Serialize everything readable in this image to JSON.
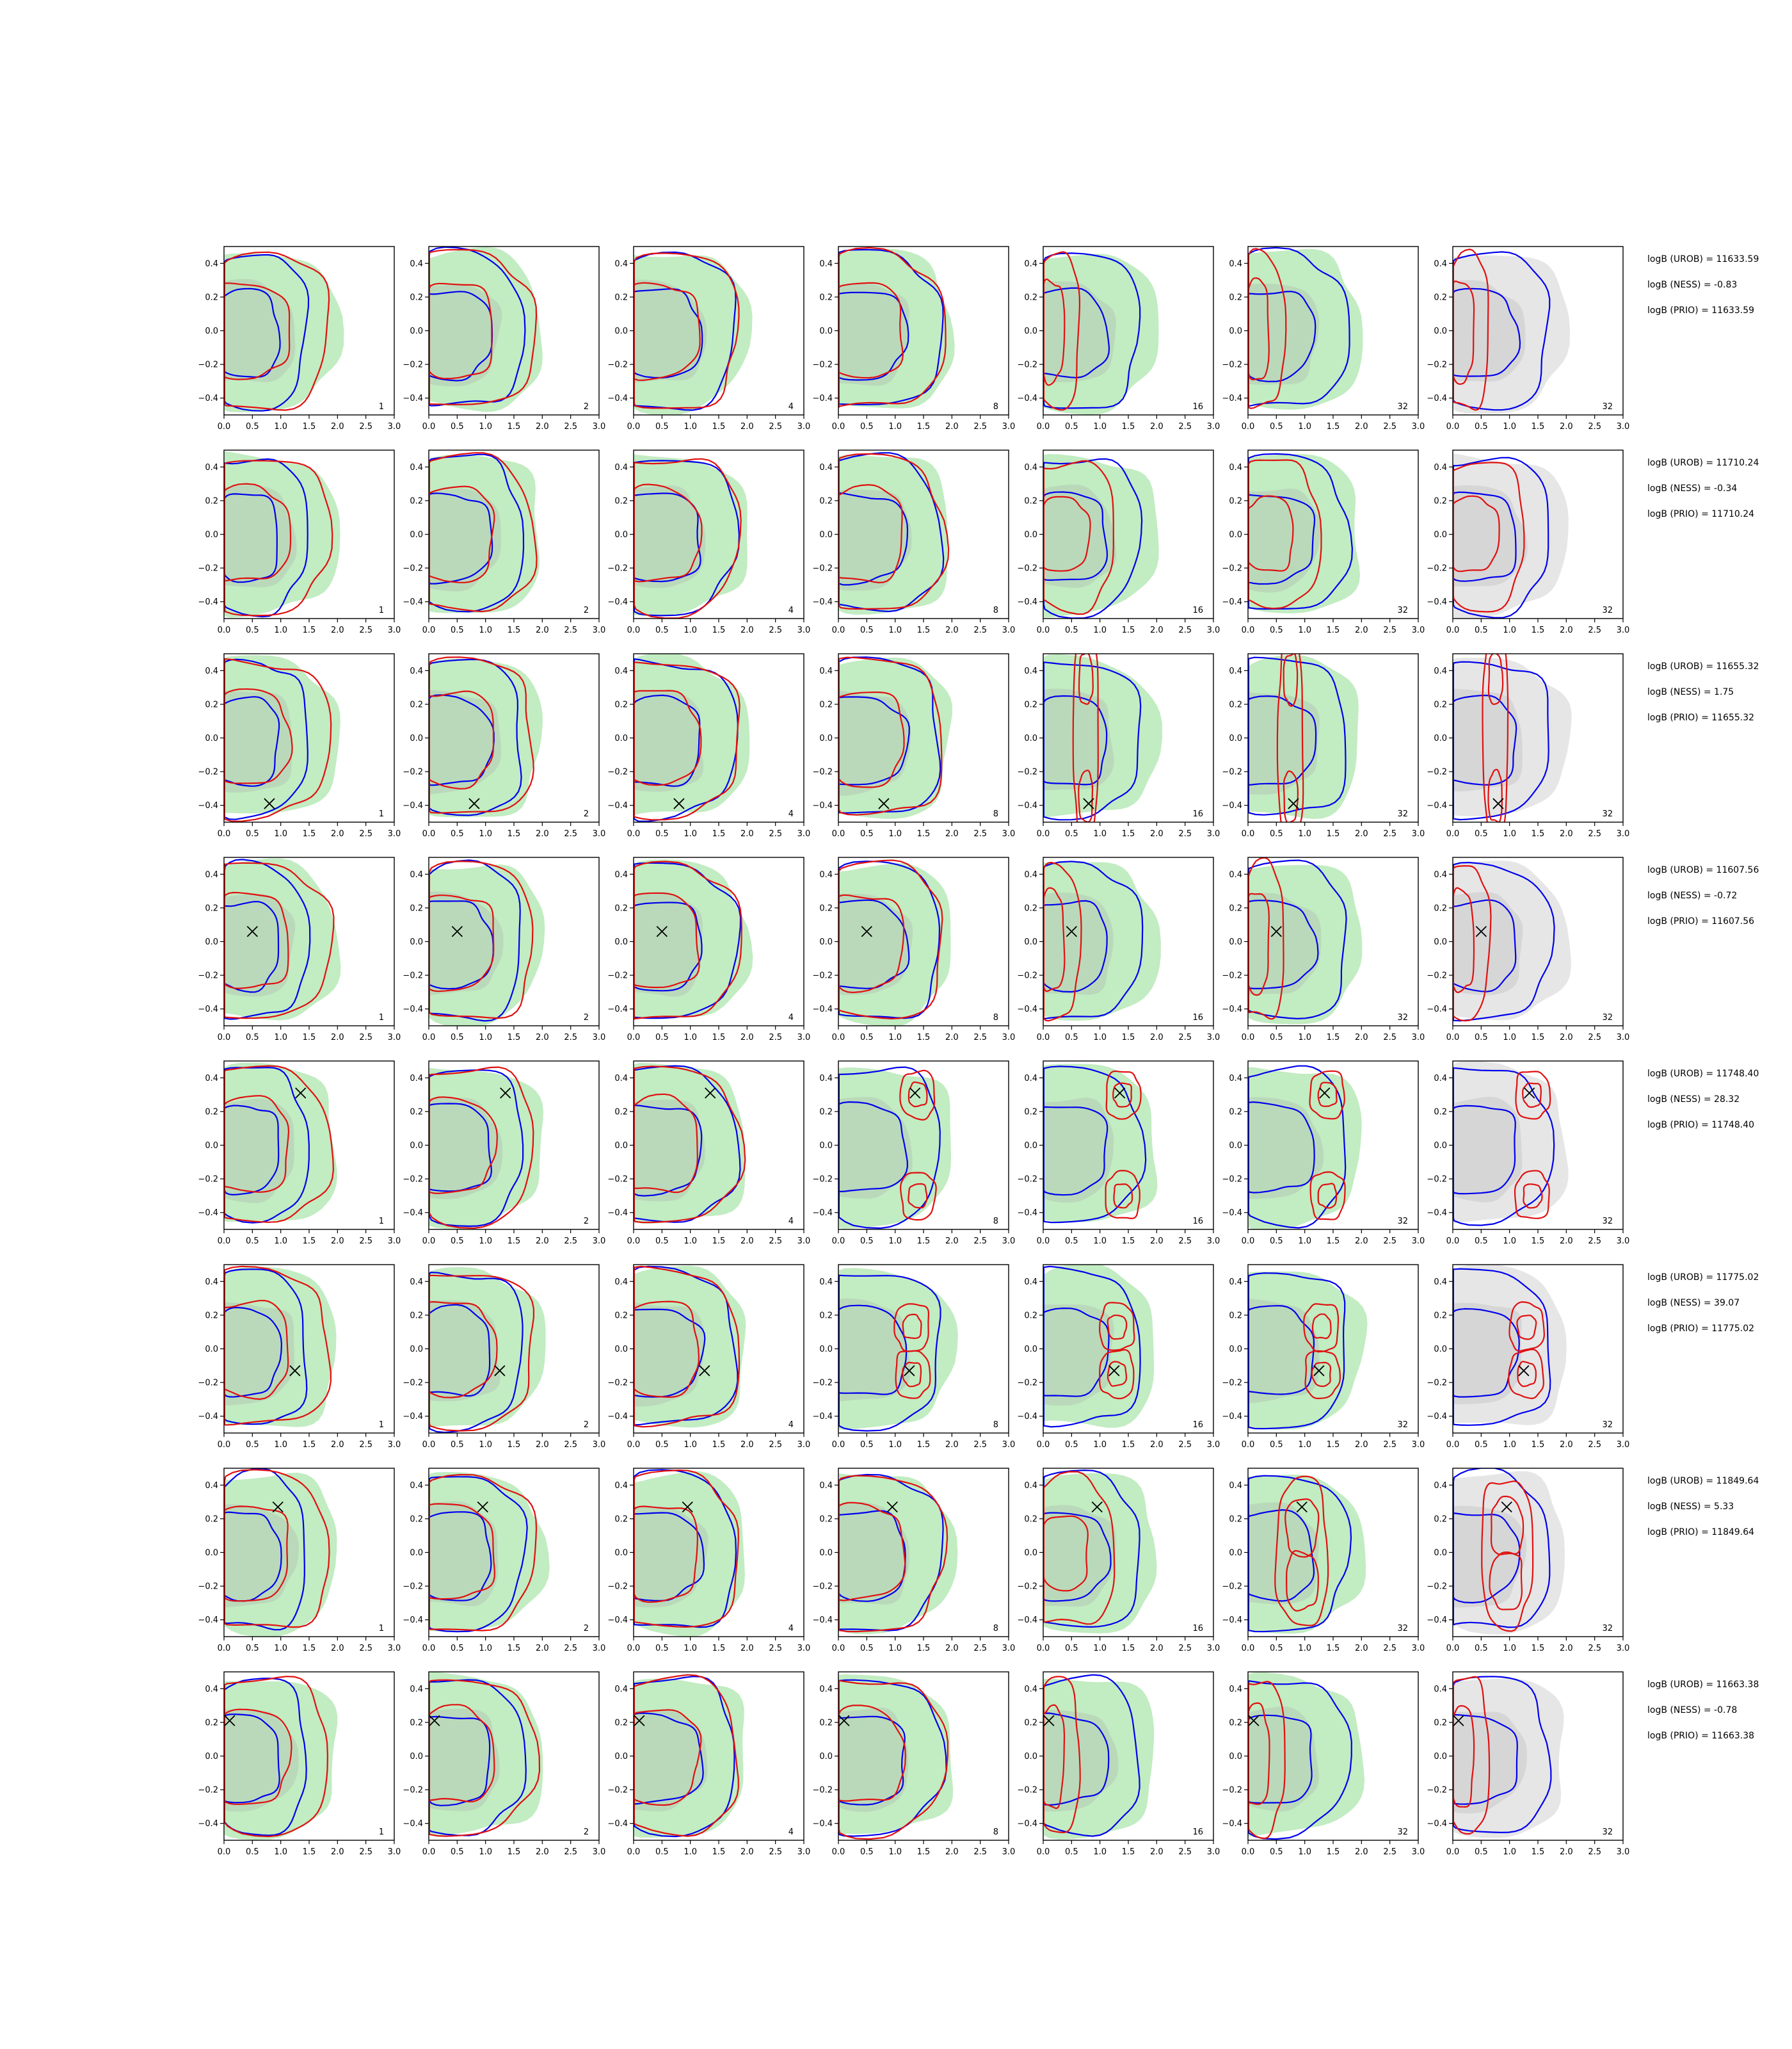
{
  "chart_data": {
    "type": "scatter",
    "description_free": true,
    "grid": false,
    "xlim": [
      0.0,
      3.0
    ],
    "ylim": [
      -0.5,
      0.5
    ],
    "x_ticks": [
      "0.0",
      "0.5",
      "1.0",
      "1.5",
      "2.0",
      "2.5",
      "3.0"
    ],
    "y_ticks": [
      "0.4",
      "0.2",
      "0.0",
      "−0.2",
      "−0.4"
    ],
    "x_tick_values": [
      0.0,
      0.5,
      1.0,
      1.5,
      2.0,
      2.5,
      3.0
    ],
    "y_tick_values": [
      0.4,
      0.2,
      0.0,
      -0.2,
      -0.4
    ],
    "panel_corner_labels": [
      "1",
      "2",
      "4",
      "8",
      "16",
      "32",
      "32"
    ],
    "colors": {
      "prior_fill_outer": "#c2ecc2",
      "prior_fill_inner": "#b9d6b9",
      "grey_fill_outer": "#e6e6e6",
      "grey_fill_inner": "#d2d2d2",
      "blue": "#0000ee",
      "red": "#e01010",
      "marker": "#000000"
    },
    "rows": [
      {
        "annotations": [
          "logB (UROB) = 11633.59",
          "logB (NESS) = -0.83",
          "logB (PRIO) = 11633.59"
        ],
        "marker": null,
        "red_mode": [
          "wide",
          "wide",
          "wide",
          "wide",
          "narrow",
          "narrow",
          "narrow"
        ]
      },
      {
        "annotations": [
          "logB (UROB) = 11710.24",
          "logB (NESS) = -0.34",
          "logB (PRIO) = 11710.24"
        ],
        "marker": null,
        "red_mode": [
          "wide",
          "wide",
          "wide",
          "wide",
          "mid",
          "mid",
          "mid"
        ]
      },
      {
        "annotations": [
          "logB (UROB) = 11655.32",
          "logB (NESS) = 1.75",
          "logB (PRIO) = 11655.32"
        ],
        "marker": [
          0.8,
          -0.39
        ],
        "red_mode": [
          "wide",
          "wide",
          "wide",
          "wide",
          "stripe",
          "stripe",
          "stripe"
        ]
      },
      {
        "annotations": [
          "logB (UROB) = 11607.56",
          "logB (NESS) = -0.72",
          "logB (PRIO) = 11607.56"
        ],
        "marker": [
          0.5,
          0.06
        ],
        "red_mode": [
          "wide",
          "wide",
          "wide",
          "wide",
          "narrow",
          "narrow",
          "narrow"
        ]
      },
      {
        "annotations": [
          "logB (UROB) = 11748.40",
          "logB (NESS) = 28.32",
          "logB (PRIO) = 11748.40"
        ],
        "marker": [
          1.35,
          0.31
        ],
        "red_mode": [
          "wide",
          "wide",
          "wide",
          "twin",
          "twin",
          "twin",
          "twin"
        ]
      },
      {
        "annotations": [
          "logB (UROB) = 11775.02",
          "logB (NESS) = 39.07",
          "logB (PRIO) = 11775.02"
        ],
        "marker": [
          1.25,
          -0.13
        ],
        "red_mode": [
          "wide",
          "wide",
          "wide",
          "twin",
          "twin",
          "twin",
          "twin"
        ]
      },
      {
        "annotations": [
          "logB (UROB) = 11849.64",
          "logB (NESS) = 5.33",
          "logB (PRIO) = 11849.64"
        ],
        "marker": [
          0.95,
          0.27
        ],
        "red_mode": [
          "wide",
          "wide",
          "wide",
          "wide",
          "mid",
          "eight",
          "eight"
        ]
      },
      {
        "annotations": [
          "logB (UROB) = 11663.38",
          "logB (NESS) = -0.78",
          "logB (PRIO) = 11663.38"
        ],
        "marker": [
          0.1,
          0.21
        ],
        "red_mode": [
          "wide",
          "wide",
          "wide",
          "wide",
          "narrow",
          "narrow",
          "narrow"
        ]
      }
    ]
  }
}
